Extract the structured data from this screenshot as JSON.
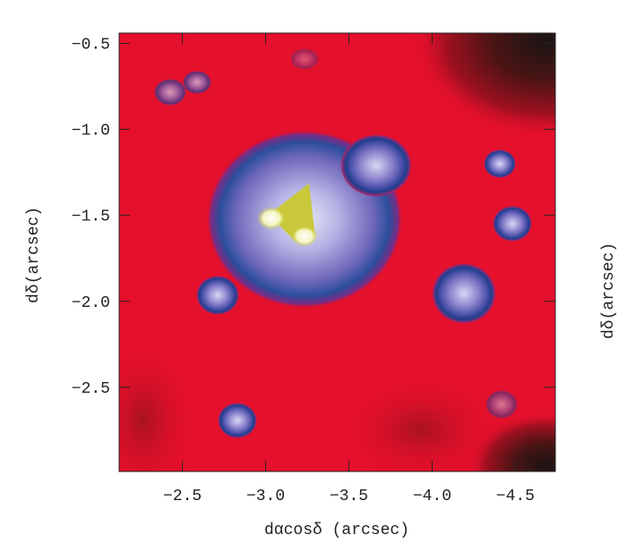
{
  "chart_data": {
    "type": "image",
    "xlabel": "dαcosδ (arcsec)",
    "ylabel": "dδ(arcsec)",
    "xlim": [
      -2.12,
      -4.74
    ],
    "ylim": [
      -2.99,
      -0.44
    ],
    "xticks": [
      {
        "value": -2.5,
        "label": "−2.5"
      },
      {
        "value": -3.0,
        "label": "−3.0"
      },
      {
        "value": -3.5,
        "label": "−3.5"
      },
      {
        "value": -4.0,
        "label": "−4.0"
      },
      {
        "value": -4.5,
        "label": "−4.5"
      }
    ],
    "yticks": [
      {
        "value": -0.5,
        "label": "−0.5"
      },
      {
        "value": -1.0,
        "label": "−1.0"
      },
      {
        "value": -1.5,
        "label": "−1.5"
      },
      {
        "value": -2.0,
        "label": "−2.0"
      },
      {
        "value": -2.5,
        "label": "−2.5"
      }
    ]
  }
}
